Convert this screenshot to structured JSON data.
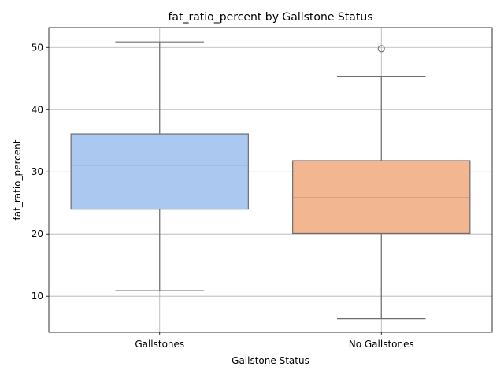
{
  "chart_data": {
    "type": "box",
    "title": "fat_ratio_percent by Gallstone Status",
    "xlabel": "Gallstone Status",
    "ylabel": "fat_ratio_percent",
    "ylim": [
      4.2,
      53.2
    ],
    "yticks": [
      10,
      20,
      30,
      40,
      50
    ],
    "grid": true,
    "categories": [
      "Gallstones",
      "No Gallstones"
    ],
    "series": [
      {
        "category": "Gallstones",
        "whisker_low": 10.9,
        "q1": 24.0,
        "median": 31.1,
        "q3": 36.1,
        "whisker_high": 50.9,
        "outliers": [],
        "color": "#abc9f0"
      },
      {
        "category": "No Gallstones",
        "whisker_low": 6.4,
        "q1": 20.1,
        "median": 25.8,
        "q3": 31.8,
        "whisker_high": 45.3,
        "outliers": [
          49.8
        ],
        "color": "#f2b791"
      }
    ]
  }
}
